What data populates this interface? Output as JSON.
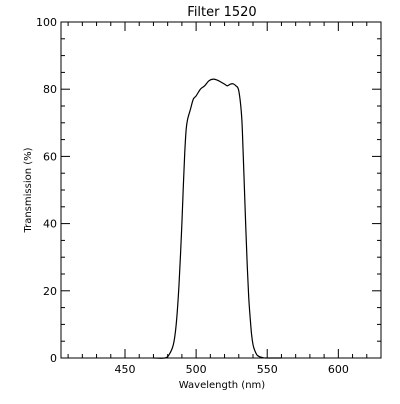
{
  "chart_data": {
    "type": "line",
    "title": "Filter 1520",
    "xlabel": "Wavelength (nm)",
    "ylabel": "Transmission (%)",
    "xlim": [
      405,
      630
    ],
    "ylim": [
      0,
      100
    ],
    "xticks": [
      450,
      500,
      550,
      600
    ],
    "yticks": [
      0,
      20,
      40,
      60,
      80,
      100
    ],
    "xtick_labels": [
      "450",
      "500",
      "550",
      "600"
    ],
    "ytick_labels": [
      "0",
      "20",
      "40",
      "60",
      "80",
      "100"
    ],
    "grid": false,
    "legend": "none",
    "line_color": "#000000",
    "series": [
      {
        "x": [
          470,
          478,
          481,
          484,
          486,
          488,
          490,
          491,
          492,
          493,
          494,
          496,
          498,
          500,
          503,
          506,
          509,
          512,
          515,
          518,
          520,
          522,
          524,
          526,
          528,
          530,
          532,
          533,
          534,
          535,
          536,
          537,
          538,
          539,
          540,
          541,
          542,
          543,
          545,
          547,
          549,
          552,
          560
        ],
        "y": [
          0,
          0,
          1,
          4,
          10,
          22,
          40,
          51,
          61,
          68,
          71,
          74,
          77,
          78,
          80,
          81,
          82.5,
          83,
          82.7,
          82,
          81.5,
          81,
          81.5,
          81.6,
          81,
          79.5,
          72,
          62,
          50,
          38,
          27,
          18,
          12,
          7,
          4,
          2.5,
          1.5,
          0.8,
          0.3,
          0.1,
          0,
          0,
          0
        ]
      }
    ]
  }
}
